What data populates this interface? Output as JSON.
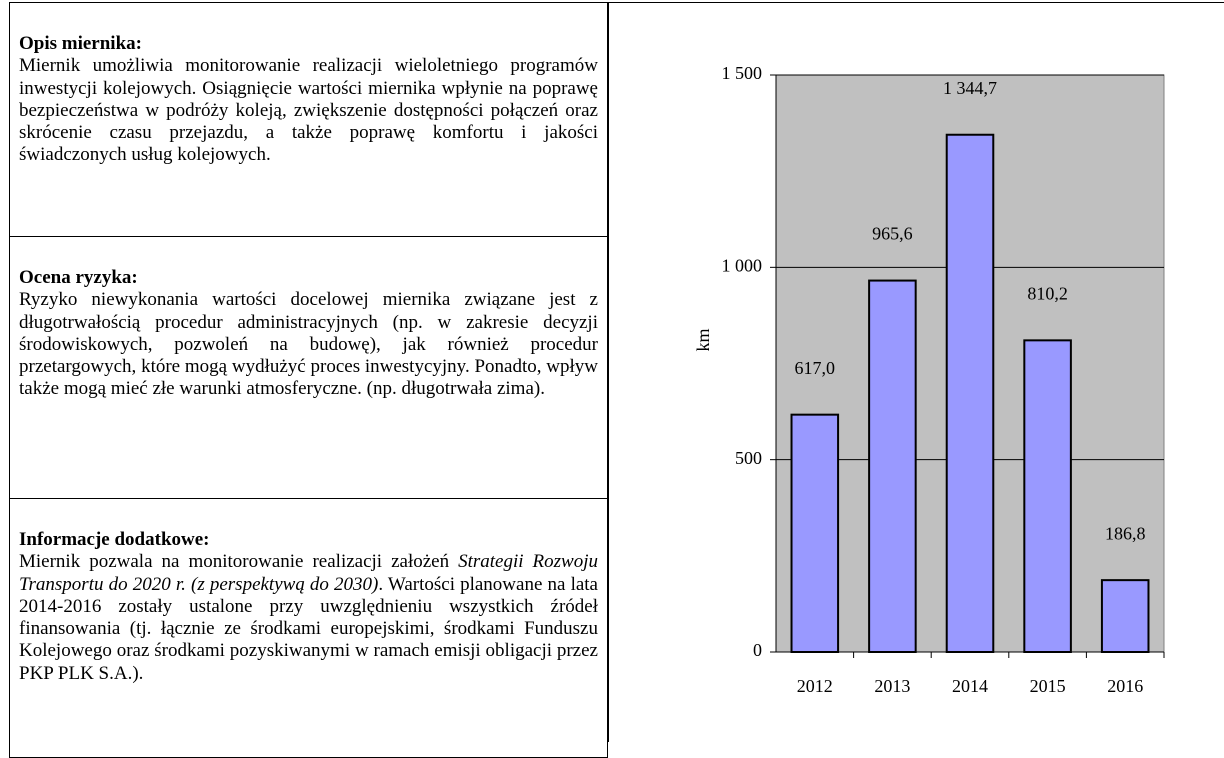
{
  "sections": [
    {
      "title": "Opis miernika:",
      "parts": [
        "Miernik umożliwia monitorowanie realizacji wieloletniego programów inwestycji kolejowych. Osiągnięcie wartości miernika wpłynie na poprawę bezpieczeństwa w podróży koleją, zwiększenie dostępności połączeń oraz skrócenie czasu przejazdu, a także poprawę komfortu i jakości świadczonych usług kolejowych."
      ]
    },
    {
      "title": "Ocena ryzyka:",
      "parts": [
        "Ryzyko niewykonania wartości docelowej miernika związane jest z długotrwałością procedur administracyjnych (np. w zakresie decyzji środowiskowych, pozwoleń na budowę), jak również procedur przetargowych, które mogą wydłużyć proces inwestycyjny. Ponadto, wpływ także mogą mieć złe warunki atmosferyczne. (np. długotrwała zima)."
      ]
    },
    {
      "title": "Informacje dodatkowe:",
      "parts": [
        "Miernik pozwala na monitorowanie realizacji założeń ",
        "Strategii Rozwoju Transportu do 2020 r. (z perspektywą do 2030)",
        ". Wartości planowane na lata 2014-2016 zostały ustalone przy uwzględnieniu wszystkich źródeł finansowania (tj. łącznie ze środkami europejskimi, środkami Funduszu Kolejowego oraz środkami pozyskiwanymi w ramach emisji obligacji przez PKP PLK S.A.)."
      ],
      "italic_part": 1
    }
  ],
  "chart_data": {
    "type": "bar",
    "y_label": "km",
    "categories": [
      "2012",
      "2013",
      "2014",
      "2015",
      "2016"
    ],
    "values": [
      617.0,
      965.6,
      1344.7,
      810.2,
      186.8
    ],
    "value_labels": [
      "617,0",
      "965,6",
      "1 344,7",
      "810,2",
      "186,8"
    ],
    "color": "#9999ff",
    "plot_color": "#c0c0c0",
    "ylim": [
      0,
      1500
    ],
    "yticks": [
      0,
      500,
      {
        "value": 1000,
        "label": "1 000"
      },
      {
        "value": 1500,
        "label": "1 500"
      }
    ],
    "grid": true
  }
}
